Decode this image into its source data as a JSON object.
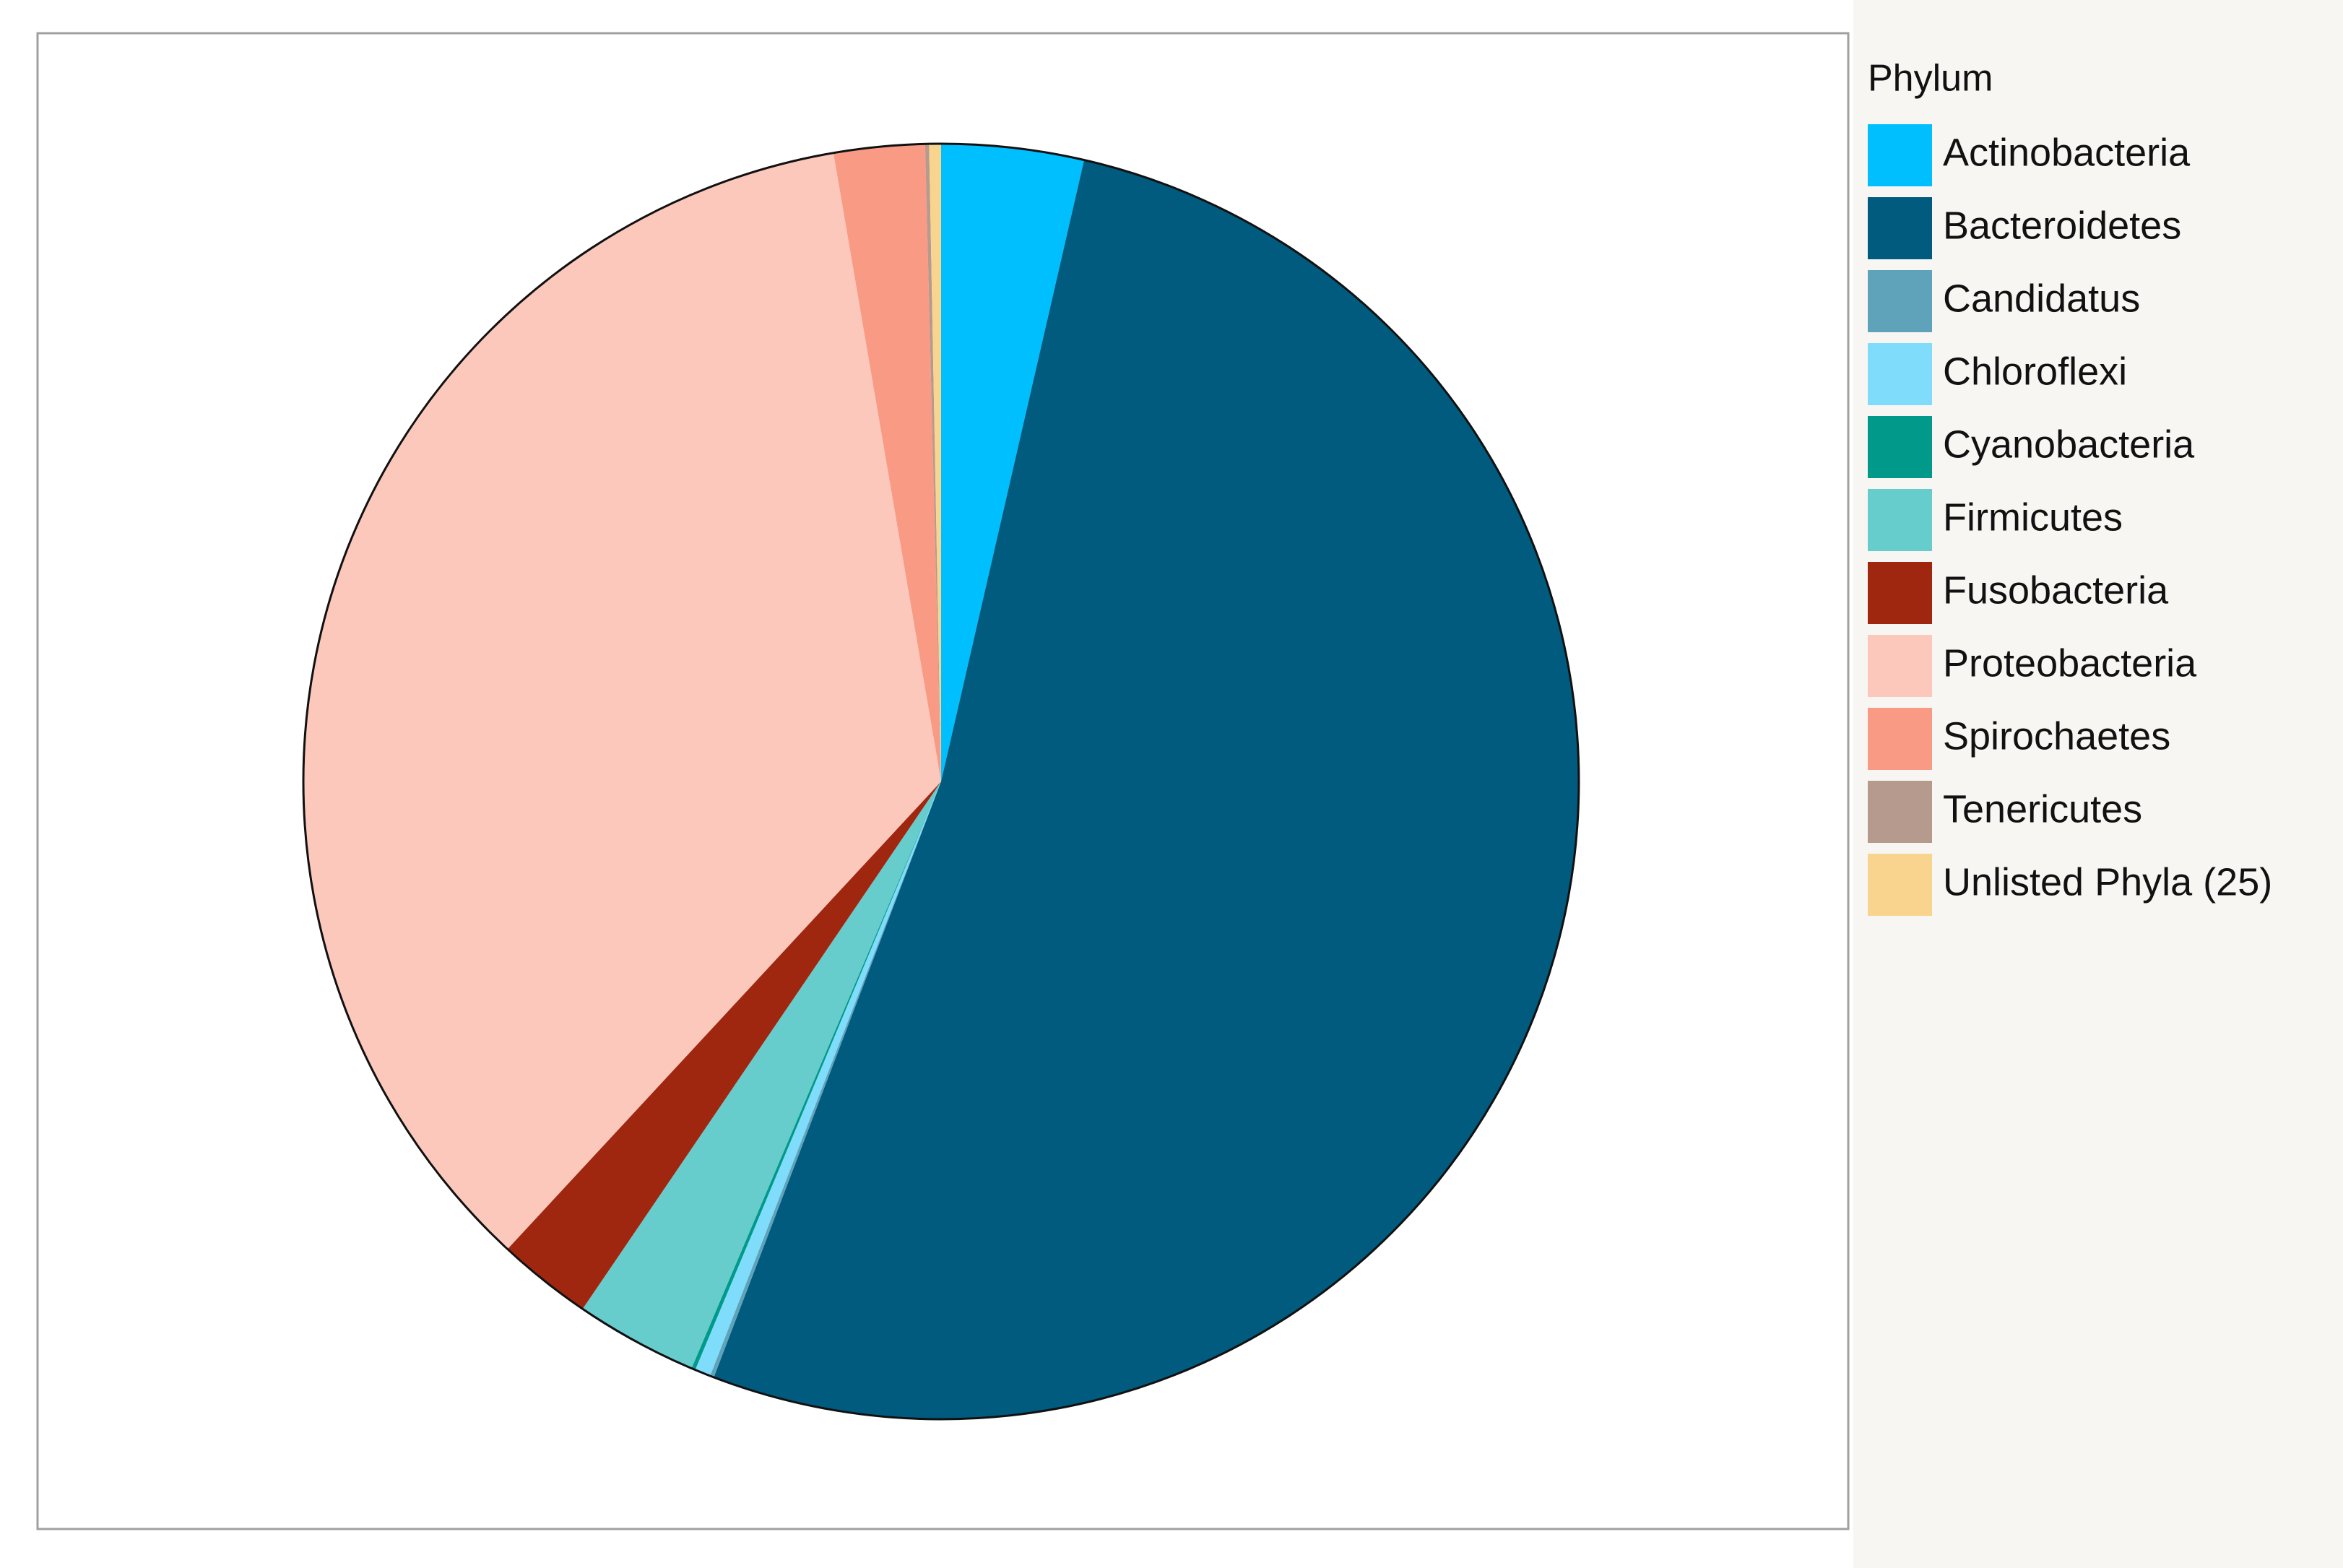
{
  "chart_data": {
    "type": "pie",
    "legend_title": "Phylum",
    "legend": "right",
    "categories": [
      "Actinobacteria",
      "Bacteroidetes",
      "Candidatus",
      "Chloroflexi",
      "Cyanobacteria",
      "Firmicutes",
      "Fusobacteria",
      "Proteobacteria",
      "Spirochaetes",
      "Tenericutes",
      "Unlisted Phyla (25)"
    ],
    "values": [
      3.6,
      52.2,
      0.1,
      0.4,
      0.1,
      3.1,
      2.4,
      35.4,
      2.3,
      0.1,
      0.3
    ],
    "colors": [
      "#00bfff",
      "#005b7f",
      "#5fa3bb",
      "#7fdcfa",
      "#00998a",
      "#66cccc",
      "#a0270f",
      "#fdc8bc",
      "#f99a85",
      "#b59a8d",
      "#f8d48f"
    ]
  }
}
